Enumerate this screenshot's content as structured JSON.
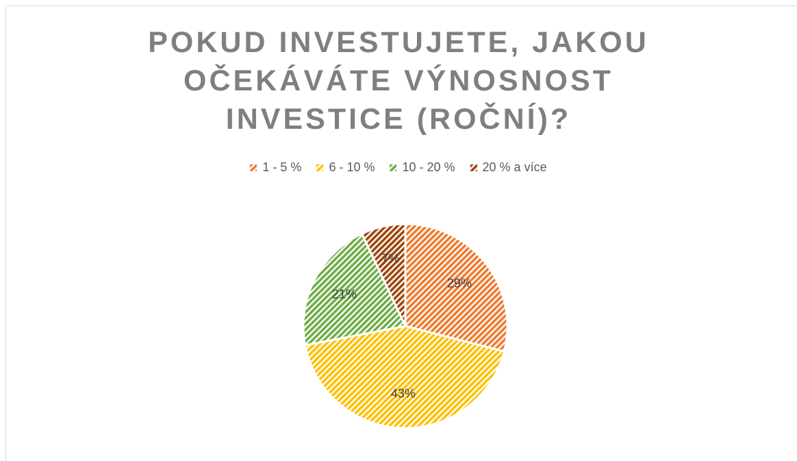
{
  "chart_data": {
    "type": "pie",
    "title": "POKUD INVESTUJETE, JAKOU OČEKÁVÁTE VÝNOSNOST INVESTICE (ROČNÍ)?",
    "categories": [
      "1 - 5 %",
      "6 - 10 %",
      "10 - 20 %",
      "20 % a více"
    ],
    "values": [
      29,
      43,
      21,
      7
    ],
    "value_labels": [
      "29%",
      "43%",
      "21%",
      "7%"
    ],
    "colors": [
      "#ED7D31",
      "#FFC000",
      "#70AD47",
      "#9E480E"
    ],
    "legend": "top"
  }
}
